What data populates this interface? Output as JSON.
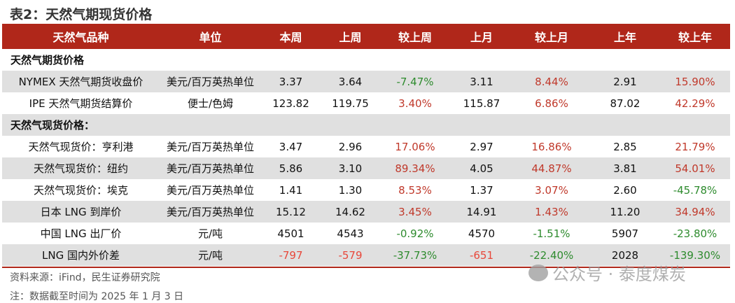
{
  "title": "表2：天然气期现货价格",
  "headers": [
    "天然气品种",
    "单位",
    "本周",
    "上周",
    "较上周",
    "上月",
    "较上月",
    "上年",
    "较上年"
  ],
  "sections": [
    {
      "label": "天然气期货价格",
      "gray": false,
      "rows": [
        {
          "name": "NYMEX 天然气期货收盘价",
          "unit": "美元/百万英热单位",
          "cur": "3.37",
          "lw": "3.64",
          "wow": "-7.47%",
          "lm": "3.11",
          "mom": "8.44%",
          "ly": "2.91",
          "yoy": "15.90%"
        },
        {
          "name": "IPE 天然气期货结算价",
          "unit": "便士/色姆",
          "cur": "123.82",
          "lw": "119.75",
          "wow": "3.40%",
          "lm": "115.87",
          "mom": "6.86%",
          "ly": "87.02",
          "yoy": "42.29%"
        }
      ]
    },
    {
      "label": "天然气现货价格：",
      "gray": true,
      "rows": [
        {
          "name": "天然气现货价：亨利港",
          "unit": "美元/百万英热单位",
          "cur": "3.47",
          "lw": "2.96",
          "wow": "17.06%",
          "lm": "2.97",
          "mom": "16.86%",
          "ly": "2.85",
          "yoy": "21.79%"
        },
        {
          "name": "天然气现货价：纽约",
          "unit": "美元/百万英热单位",
          "cur": "5.86",
          "lw": "3.10",
          "wow": "89.34%",
          "lm": "4.05",
          "mom": "44.87%",
          "ly": "3.81",
          "yoy": "54.01%"
        },
        {
          "name": "天然气现货价：埃克",
          "unit": "美元/百万英热单位",
          "cur": "1.41",
          "lw": "1.30",
          "wow": "8.53%",
          "lm": "1.37",
          "mom": "3.07%",
          "ly": "2.60",
          "yoy": "-45.78%"
        },
        {
          "name": "日本 LNG 到岸价",
          "unit": "美元/百万英热单位",
          "cur": "15.12",
          "lw": "14.62",
          "wow": "3.45%",
          "lm": "14.91",
          "mom": "1.43%",
          "ly": "11.20",
          "yoy": "34.94%"
        },
        {
          "name": "中国 LNG 出厂价",
          "unit": "元/吨",
          "cur": "4501",
          "lw": "4543",
          "wow": "-0.92%",
          "lm": "4570",
          "mom": "-1.51%",
          "ly": "5907",
          "yoy": "-23.80%"
        },
        {
          "name": "LNG 国内外价差",
          "unit": "元/吨",
          "cur": "-797",
          "lw": "-579",
          "wow": "-37.73%",
          "lm": "-651",
          "mom": "-22.40%",
          "ly": "2028",
          "yoy": "-139.30%"
        }
      ]
    }
  ],
  "source": "资料来源：iFind，民生证券研究院",
  "note": "注：数据截至时间为 2025 年 1 月 3 日",
  "watermark": "公众号 · 泰度煤炭",
  "colors": {
    "header": "#b0271a",
    "positive": "#c0392b",
    "negative": "#2e8b2e",
    "band": "#e0e0e0"
  }
}
